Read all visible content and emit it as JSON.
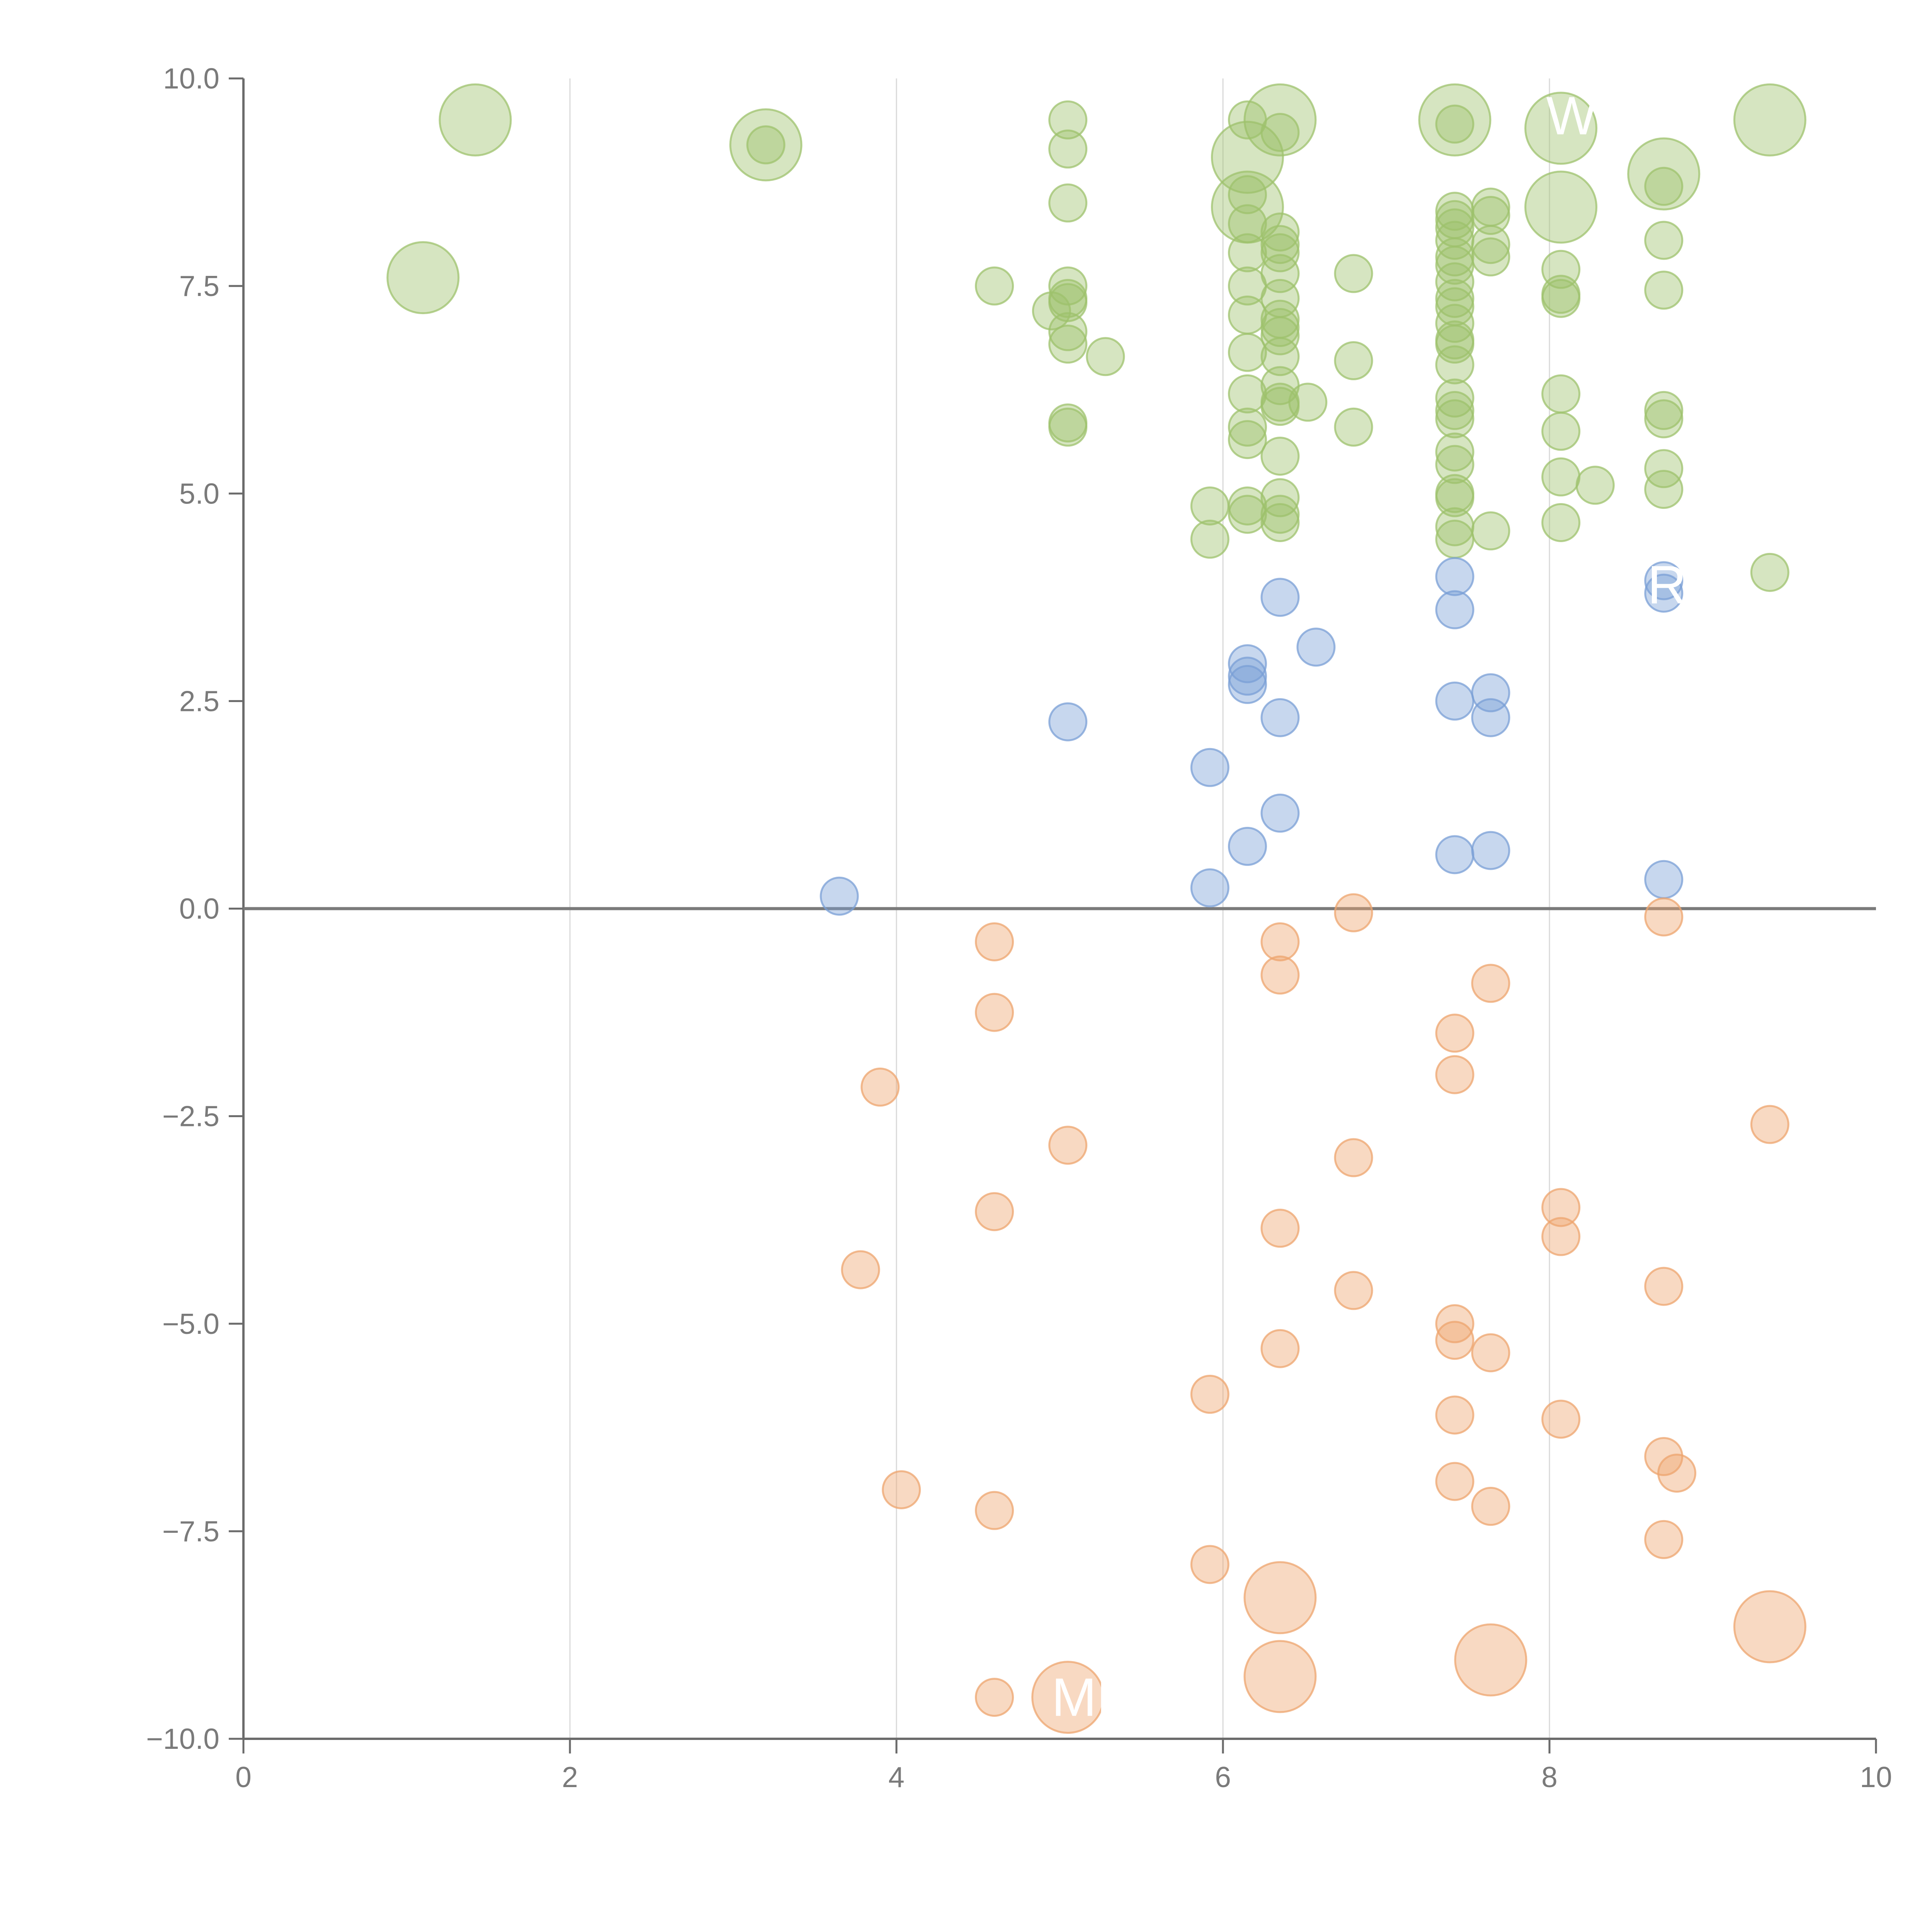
{
  "chart_data": {
    "type": "scatter",
    "title": "",
    "xlabel": "",
    "ylabel": "",
    "xlim": [
      0,
      10
    ],
    "ylim": [
      -10,
      10
    ],
    "x_ticks": [
      "0",
      "2",
      "4",
      "6",
      "8",
      "10"
    ],
    "y_ticks": [
      "10.0",
      "7.5",
      "5.0",
      "2.5",
      "0.0",
      "−2.5",
      "−5.0",
      "−7.5",
      "−10.0"
    ],
    "grid": "vertical",
    "reference_line_y": 0,
    "colors": {
      "green": "#9dc16c",
      "blue": "#7a9fd6",
      "orange": "#eea46e"
    },
    "labels": [
      {
        "text": "W",
        "x": 7.98,
        "y": 9.55
      },
      {
        "text": "Ro",
        "x": 8.6,
        "y": 3.9
      },
      {
        "text": "ME",
        "x": 4.95,
        "y": -9.5
      }
    ],
    "series": [
      {
        "color": "green",
        "big_points": [
          [
            1.42,
            9.5
          ],
          [
            3.2,
            9.2
          ],
          [
            1.1,
            7.6
          ],
          [
            6.35,
            9.5
          ],
          [
            6.15,
            9.05
          ],
          [
            7.42,
            9.5
          ],
          [
            8.07,
            9.4
          ],
          [
            8.07,
            8.45
          ],
          [
            8.7,
            8.85
          ],
          [
            9.35,
            9.5
          ],
          [
            6.15,
            8.45
          ]
        ],
        "points": [
          [
            5.05,
            9.5
          ],
          [
            5.05,
            9.15
          ],
          [
            5.05,
            8.5
          ],
          [
            6.15,
            9.5
          ],
          [
            6.35,
            9.35
          ],
          [
            3.2,
            9.2
          ],
          [
            7.42,
            9.45
          ],
          [
            4.6,
            7.5
          ],
          [
            5.05,
            7.5
          ],
          [
            5.05,
            7.35
          ],
          [
            5.05,
            7.3
          ],
          [
            4.95,
            7.2
          ],
          [
            5.05,
            6.95
          ],
          [
            5.05,
            6.8
          ],
          [
            5.28,
            6.65
          ],
          [
            5.05,
            5.85
          ],
          [
            5.05,
            5.8
          ],
          [
            5.92,
            4.85
          ],
          [
            5.92,
            4.45
          ],
          [
            6.15,
            8.6
          ],
          [
            6.15,
            8.25
          ],
          [
            6.15,
            7.9
          ],
          [
            6.15,
            7.5
          ],
          [
            6.15,
            7.15
          ],
          [
            6.15,
            6.7
          ],
          [
            6.15,
            6.2
          ],
          [
            6.15,
            5.8
          ],
          [
            6.15,
            5.65
          ],
          [
            6.15,
            4.85
          ],
          [
            6.15,
            4.75
          ],
          [
            6.35,
            8.15
          ],
          [
            6.35,
            8.0
          ],
          [
            6.35,
            7.9
          ],
          [
            6.35,
            7.65
          ],
          [
            6.35,
            7.35
          ],
          [
            6.35,
            7.1
          ],
          [
            6.35,
            7.0
          ],
          [
            6.35,
            6.9
          ],
          [
            6.35,
            6.65
          ],
          [
            6.35,
            6.3
          ],
          [
            6.35,
            6.1
          ],
          [
            6.35,
            6.05
          ],
          [
            6.35,
            5.45
          ],
          [
            6.35,
            4.95
          ],
          [
            6.35,
            4.75
          ],
          [
            6.35,
            4.65
          ],
          [
            6.52,
            6.1
          ],
          [
            6.8,
            7.65
          ],
          [
            6.8,
            6.6
          ],
          [
            6.8,
            5.8
          ],
          [
            7.42,
            8.4
          ],
          [
            7.42,
            8.3
          ],
          [
            7.42,
            8.2
          ],
          [
            7.42,
            8.05
          ],
          [
            7.42,
            7.85
          ],
          [
            7.42,
            7.75
          ],
          [
            7.42,
            7.55
          ],
          [
            7.42,
            7.35
          ],
          [
            7.42,
            7.25
          ],
          [
            7.42,
            7.05
          ],
          [
            7.42,
            6.85
          ],
          [
            7.42,
            6.8
          ],
          [
            7.42,
            6.55
          ],
          [
            7.42,
            6.15
          ],
          [
            7.42,
            6.0
          ],
          [
            7.42,
            5.9
          ],
          [
            7.42,
            5.5
          ],
          [
            7.42,
            5.35
          ],
          [
            7.42,
            5.0
          ],
          [
            7.42,
            4.95
          ],
          [
            7.42,
            4.6
          ],
          [
            7.42,
            4.45
          ],
          [
            7.64,
            8.45
          ],
          [
            7.64,
            8.35
          ],
          [
            7.64,
            8.0
          ],
          [
            7.64,
            7.85
          ],
          [
            7.64,
            4.55
          ],
          [
            8.07,
            7.7
          ],
          [
            8.07,
            7.4
          ],
          [
            8.07,
            7.35
          ],
          [
            8.07,
            6.2
          ],
          [
            8.07,
            5.75
          ],
          [
            8.07,
            5.2
          ],
          [
            8.07,
            4.65
          ],
          [
            8.28,
            5.1
          ],
          [
            8.7,
            8.7
          ],
          [
            8.7,
            8.05
          ],
          [
            8.7,
            7.45
          ],
          [
            8.7,
            6.0
          ],
          [
            8.7,
            5.9
          ],
          [
            8.7,
            5.3
          ],
          [
            8.7,
            5.05
          ],
          [
            9.35,
            4.05
          ]
        ]
      },
      {
        "color": "blue",
        "big_points": [],
        "points": [
          [
            3.65,
            0.15
          ],
          [
            5.05,
            2.25
          ],
          [
            5.92,
            1.7
          ],
          [
            5.92,
            0.25
          ],
          [
            6.15,
            2.95
          ],
          [
            6.15,
            2.8
          ],
          [
            6.15,
            2.7
          ],
          [
            6.15,
            0.75
          ],
          [
            6.35,
            3.75
          ],
          [
            6.35,
            2.3
          ],
          [
            6.35,
            1.15
          ],
          [
            6.57,
            3.15
          ],
          [
            7.42,
            4.0
          ],
          [
            7.42,
            3.6
          ],
          [
            7.42,
            2.5
          ],
          [
            7.42,
            0.65
          ],
          [
            7.64,
            2.6
          ],
          [
            7.64,
            2.3
          ],
          [
            7.64,
            0.7
          ],
          [
            8.7,
            3.95
          ],
          [
            8.7,
            3.8
          ],
          [
            8.7,
            0.35
          ]
        ]
      },
      {
        "color": "orange",
        "big_points": [
          [
            6.35,
            -8.3
          ],
          [
            6.35,
            -9.25
          ],
          [
            7.64,
            -9.05
          ],
          [
            9.35,
            -8.65
          ],
          [
            5.05,
            -9.5
          ]
        ],
        "points": [
          [
            4.6,
            -0.4
          ],
          [
            4.6,
            -1.25
          ],
          [
            3.9,
            -2.15
          ],
          [
            5.05,
            -2.85
          ],
          [
            4.6,
            -3.65
          ],
          [
            3.78,
            -4.35
          ],
          [
            4.03,
            -7.0
          ],
          [
            4.6,
            -7.25
          ],
          [
            4.6,
            -9.5
          ],
          [
            5.92,
            -5.85
          ],
          [
            5.92,
            -7.9
          ],
          [
            6.35,
            -0.4
          ],
          [
            6.35,
            -0.8
          ],
          [
            6.35,
            -3.85
          ],
          [
            6.35,
            -5.3
          ],
          [
            6.8,
            -0.05
          ],
          [
            6.8,
            -3.0
          ],
          [
            6.8,
            -4.6
          ],
          [
            7.42,
            -1.5
          ],
          [
            7.42,
            -2.0
          ],
          [
            7.42,
            -5.0
          ],
          [
            7.42,
            -5.2
          ],
          [
            7.42,
            -6.1
          ],
          [
            7.42,
            -6.9
          ],
          [
            7.64,
            -0.9
          ],
          [
            7.64,
            -5.35
          ],
          [
            7.64,
            -7.2
          ],
          [
            8.07,
            -3.6
          ],
          [
            8.07,
            -3.95
          ],
          [
            8.07,
            -6.15
          ],
          [
            8.7,
            -0.1
          ],
          [
            8.7,
            -4.55
          ],
          [
            8.7,
            -6.6
          ],
          [
            8.7,
            -7.6
          ],
          [
            8.78,
            -6.8
          ],
          [
            9.35,
            -2.6
          ]
        ]
      }
    ]
  }
}
